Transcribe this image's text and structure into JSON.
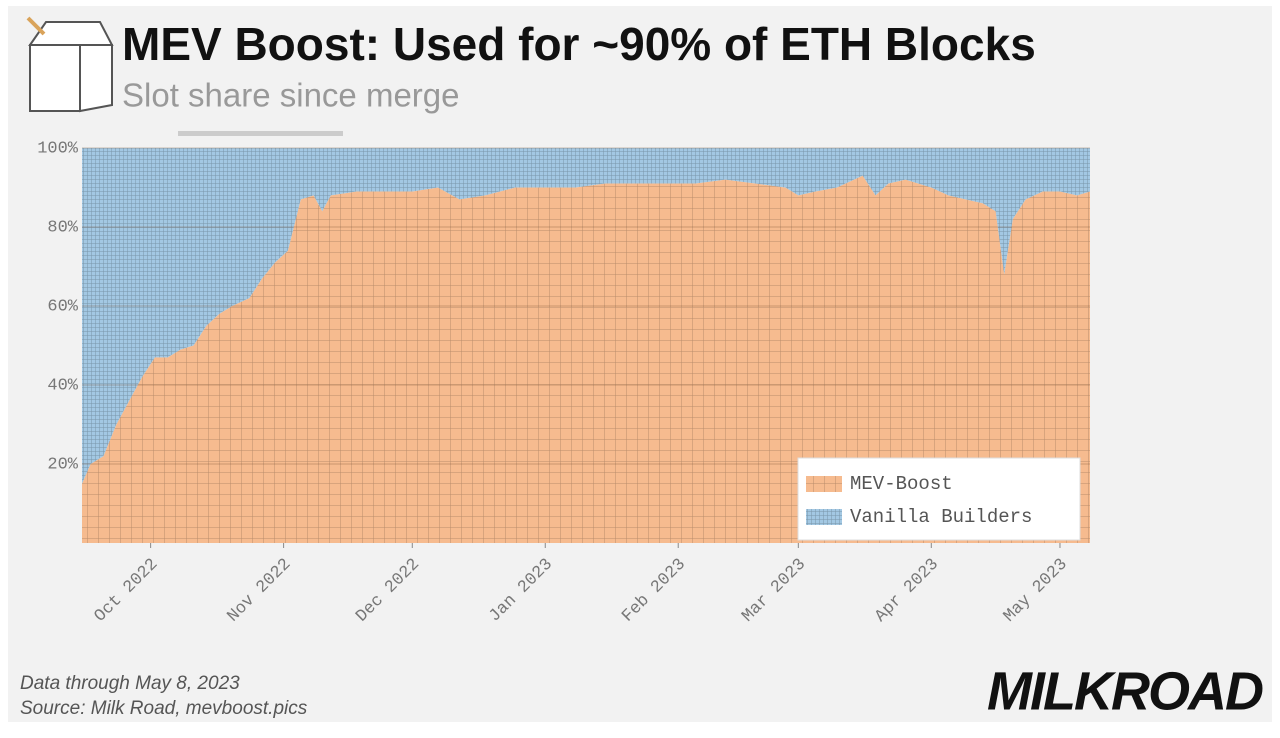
{
  "chart_data": {
    "type": "stacked_area",
    "title": "MEV Boost: Used for ~90% of ETH Blocks",
    "subtitle": "Slot share since merge",
    "notes": [
      "Data through May 8, 2023",
      "Source: Milk Road, mevboost.pics"
    ],
    "brand": "MILKROAD",
    "x": [
      "2022-09-15",
      "2022-09-17",
      "2022-09-20",
      "2022-09-23",
      "2022-09-26",
      "2022-09-29",
      "2022-10-02",
      "2022-10-05",
      "2022-10-08",
      "2022-10-11",
      "2022-10-14",
      "2022-10-17",
      "2022-10-20",
      "2022-10-24",
      "2022-10-27",
      "2022-10-30",
      "2022-11-02",
      "2022-11-05",
      "2022-11-08",
      "2022-11-10",
      "2022-11-12",
      "2022-11-18",
      "2022-11-25",
      "2022-12-01",
      "2022-12-07",
      "2022-12-12",
      "2022-12-18",
      "2022-12-25",
      "2023-01-01",
      "2023-01-08",
      "2023-01-15",
      "2023-01-22",
      "2023-01-29",
      "2023-02-05",
      "2023-02-12",
      "2023-02-19",
      "2023-02-26",
      "2023-03-01",
      "2023-03-05",
      "2023-03-10",
      "2023-03-14",
      "2023-03-16",
      "2023-03-19",
      "2023-03-22",
      "2023-03-26",
      "2023-04-01",
      "2023-04-05",
      "2023-04-09",
      "2023-04-13",
      "2023-04-16",
      "2023-04-18",
      "2023-04-20",
      "2023-04-23",
      "2023-04-27",
      "2023-05-01",
      "2023-05-05",
      "2023-05-08"
    ],
    "series": [
      {
        "name": "MEV-Boost",
        "color": "#f6bb8f",
        "values": [
          15,
          20,
          22,
          30,
          36,
          42,
          47,
          47,
          49,
          50,
          55,
          58,
          60,
          62,
          67,
          71,
          74,
          87,
          88,
          84,
          88,
          89,
          89,
          89,
          90,
          87,
          88,
          90,
          90,
          90,
          91,
          91,
          91,
          91,
          92,
          91,
          90,
          88,
          89,
          90,
          92,
          93,
          88,
          91,
          92,
          90,
          88,
          87,
          86,
          84,
          68,
          82,
          87,
          89,
          89,
          88,
          89
        ]
      },
      {
        "name": "Vanilla Builders",
        "color": "#a3c8e3",
        "values": [
          85,
          80,
          78,
          70,
          64,
          58,
          53,
          53,
          51,
          50,
          45,
          42,
          40,
          38,
          33,
          29,
          26,
          13,
          12,
          16,
          12,
          11,
          11,
          11,
          10,
          13,
          12,
          10,
          10,
          10,
          9,
          9,
          9,
          9,
          8,
          9,
          10,
          12,
          11,
          10,
          8,
          7,
          12,
          9,
          8,
          10,
          12,
          13,
          14,
          16,
          32,
          18,
          13,
          11,
          11,
          12,
          11
        ]
      }
    ],
    "xlim": [
      "2022-09-15",
      "2023-05-08"
    ],
    "xticks": [
      {
        "value": "2022-10-01",
        "label": "Oct 2022"
      },
      {
        "value": "2022-11-01",
        "label": "Nov 2022"
      },
      {
        "value": "2022-12-01",
        "label": "Dec 2022"
      },
      {
        "value": "2023-01-01",
        "label": "Jan 2023"
      },
      {
        "value": "2023-02-01",
        "label": "Feb 2023"
      },
      {
        "value": "2023-03-01",
        "label": "Mar 2023"
      },
      {
        "value": "2023-04-01",
        "label": "Apr 2023"
      },
      {
        "value": "2023-05-01",
        "label": "May 2023"
      }
    ],
    "ylim": [
      0,
      100
    ],
    "yticks": [
      {
        "value": 20,
        "label": "20%"
      },
      {
        "value": 40,
        "label": "40%"
      },
      {
        "value": 60,
        "label": "60%"
      },
      {
        "value": 80,
        "label": "80%"
      },
      {
        "value": 100,
        "label": "100%"
      }
    ],
    "grid": true,
    "legend": "lower right"
  }
}
